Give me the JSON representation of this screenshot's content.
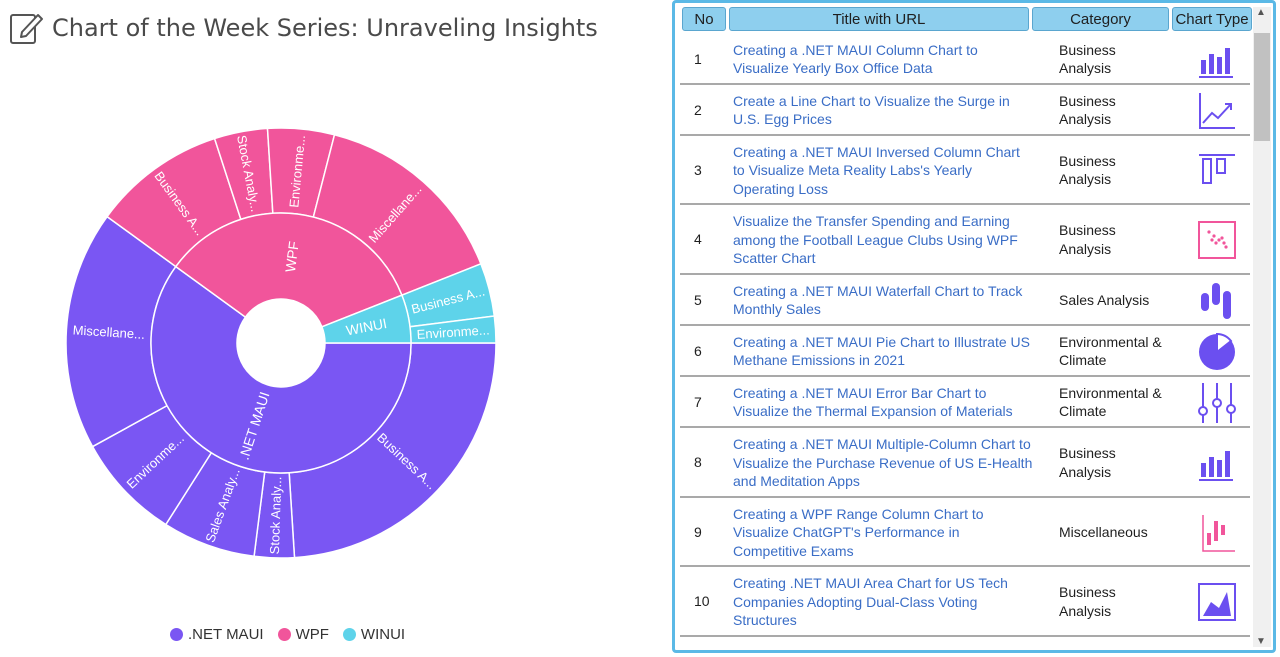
{
  "page": {
    "title": "Chart of the Week Series: Unraveling Insights"
  },
  "colors": {
    "net_maui": "#7a56f3",
    "wpf": "#f1559b",
    "winui": "#5ed3ea",
    "header_bg": "#8ecfee",
    "frame": "#5bb9e6",
    "link": "#3a6dc6"
  },
  "chart_data": {
    "type": "sunburst",
    "legend_position": "bottom",
    "legend": [
      {
        "name": ".NET MAUI",
        "color": "#7a56f3"
      },
      {
        "name": "WPF",
        "color": "#f1559b"
      },
      {
        "name": "WINUI",
        "color": "#5ed3ea"
      }
    ],
    "inner": [
      {
        "label": ".NET MAUI",
        "value": 60,
        "color": "#7a56f3"
      },
      {
        "label": "WPF",
        "value": 34,
        "color": "#f1559b"
      },
      {
        "label": "WINUI",
        "value": 6,
        "color": "#5ed3ea"
      }
    ],
    "outer": [
      {
        "label": "Business A...",
        "value": 24,
        "color": "#7a56f3"
      },
      {
        "label": "Stock Analy...",
        "value": 3,
        "color": "#7a56f3"
      },
      {
        "label": "Sales Analy...",
        "value": 7,
        "color": "#7a56f3"
      },
      {
        "label": "Environme...",
        "value": 8,
        "color": "#7a56f3"
      },
      {
        "label": "Miscellane...",
        "value": 18,
        "color": "#7a56f3"
      },
      {
        "label": "Business A...",
        "value": 10,
        "color": "#f1559b"
      },
      {
        "label": "Stock Analy...",
        "value": 4,
        "color": "#f1559b"
      },
      {
        "label": "Environme...",
        "value": 5,
        "color": "#f1559b"
      },
      {
        "label": "Miscellane...",
        "value": 15,
        "color": "#f1559b"
      },
      {
        "label": "Business A...",
        "value": 4,
        "color": "#5ed3ea"
      },
      {
        "label": "Environme...",
        "value": 2,
        "color": "#5ed3ea"
      }
    ]
  },
  "grid": {
    "headers": [
      "No",
      "Title with URL",
      "Category",
      "Chart Type"
    ],
    "rows": [
      {
        "no": "1",
        "title": "Creating a .NET MAUI Column Chart to Visualize Yearly Box Office Data",
        "category": "Business Analysis",
        "icon": "column-chart-icon"
      },
      {
        "no": "2",
        "title": "Create a Line Chart to Visualize the Surge in U.S. Egg Prices",
        "category": "Business Analysis",
        "icon": "line-chart-icon"
      },
      {
        "no": "3",
        "title": "Creating a .NET MAUI Inversed Column Chart to Visualize Meta Reality Labs's Yearly Operating Loss",
        "category": "Business Analysis",
        "icon": "inversed-column-chart-icon"
      },
      {
        "no": "4",
        "title": "Visualize the Transfer Spending and Earning among the Football League Clubs Using WPF Scatter Chart",
        "category": "Business Analysis",
        "icon": "scatter-chart-icon"
      },
      {
        "no": "5",
        "title": "Creating a .NET MAUI Waterfall Chart to Track Monthly Sales",
        "category": "Sales Analysis",
        "icon": "waterfall-chart-icon"
      },
      {
        "no": "6",
        "title": "Creating a .NET MAUI Pie Chart to Illustrate US Methane Emissions in 2021",
        "category": "Environmental & Climate",
        "icon": "pie-chart-icon"
      },
      {
        "no": "7",
        "title": "Creating a .NET MAUI Error Bar Chart to Visualize the Thermal Expansion of Materials",
        "category": "Environmental & Climate",
        "icon": "error-bar-chart-icon"
      },
      {
        "no": "8",
        "title": "Creating a .NET MAUI Multiple-Column Chart to Visualize the Purchase Revenue of US E-Health and Meditation Apps",
        "category": "Business Analysis",
        "icon": "multiple-column-chart-icon"
      },
      {
        "no": "9",
        "title": "Creating a WPF Range Column Chart to Visualize ChatGPT's Performance in Competitive Exams",
        "category": "Miscellaneous",
        "icon": "range-column-chart-icon"
      },
      {
        "no": "10",
        "title": "Creating .NET MAUI Area Chart for US Tech Companies Adopting Dual-Class Voting Structures",
        "category": "Business Analysis",
        "icon": "area-chart-icon"
      }
    ]
  }
}
